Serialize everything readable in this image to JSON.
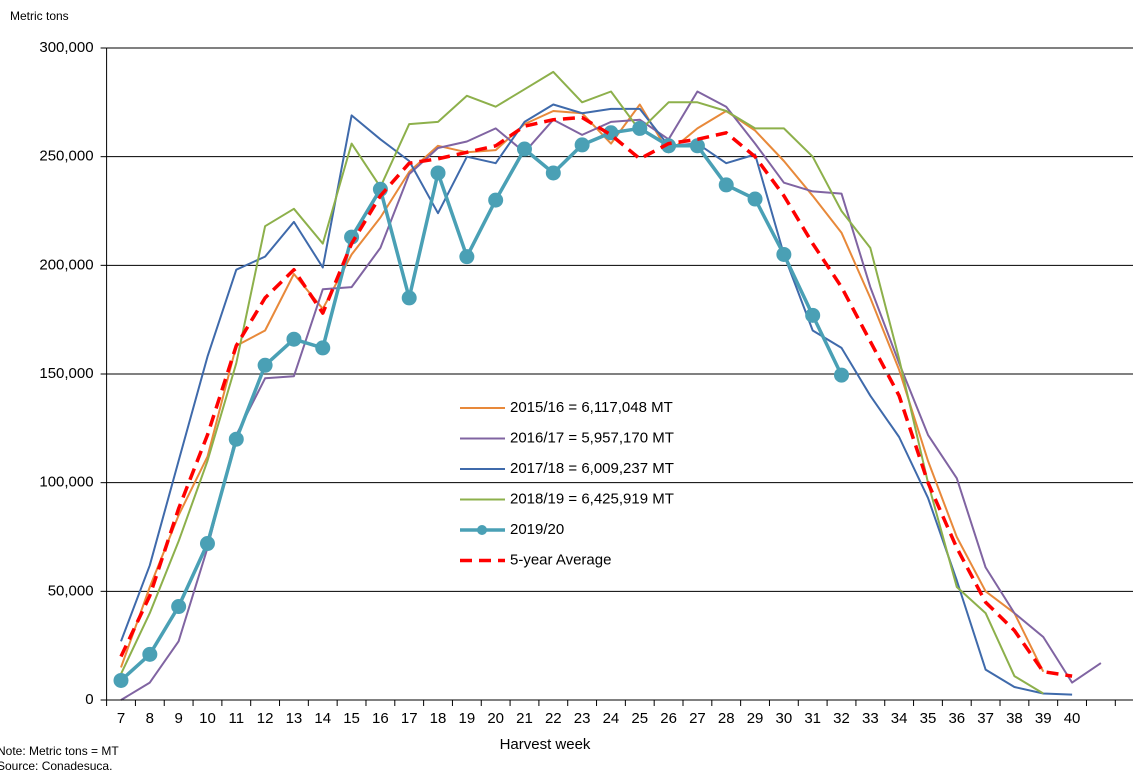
{
  "chart_data": {
    "type": "line",
    "y_unit_label": "Metric tons",
    "x_label": "Harvest  week",
    "notes": [
      "Note: Metric tons = MT",
      "Source: Conadesuca."
    ],
    "categories": [
      "7",
      "8",
      "9",
      "10",
      "11",
      "12",
      "13",
      "14",
      "15",
      "16",
      "17",
      "18",
      "19",
      "20",
      "21",
      "22",
      "23",
      "24",
      "25",
      "26",
      "27",
      "28",
      "29",
      "30",
      "31",
      "32",
      "33",
      "34",
      "35",
      "36",
      "37",
      "38",
      "39",
      "40",
      null
    ],
    "ylim": [
      0,
      300000
    ],
    "yticks": [
      0,
      {
        "value": 50000,
        "label": "50,000"
      },
      {
        "value": 100000,
        "label": "100,000"
      },
      {
        "value": 150000,
        "label": "150,000"
      },
      {
        "value": 200000,
        "label": "200,000"
      },
      {
        "value": 250000,
        "label": "250,000"
      },
      {
        "value": 300000,
        "label": "300,000"
      }
    ],
    "grid": true,
    "legend": "center",
    "series": [
      {
        "name": "2015/16 = 6,117,048 MT",
        "color": "#e8893a",
        "style": "solid",
        "values": [
          15000,
          52000,
          85000,
          112000,
          163000,
          170000,
          196000,
          180000,
          205000,
          222000,
          243000,
          255000,
          252000,
          253000,
          265000,
          271000,
          270000,
          256000,
          274000,
          252000,
          263000,
          271000,
          262000,
          248000,
          232000,
          215000,
          185000,
          152000,
          110000,
          75000,
          50000,
          40000,
          13000,
          null,
          null
        ]
      },
      {
        "name": "2016/17 = 5,957,170 MT",
        "color": "#8064a2",
        "style": "solid",
        "values": [
          0,
          8000,
          27000,
          70000,
          122000,
          148000,
          149000,
          189000,
          190000,
          208000,
          242000,
          254000,
          257000,
          263000,
          252000,
          267000,
          260000,
          266000,
          267000,
          258000,
          280000,
          273000,
          256000,
          238000,
          234000,
          233000,
          190000,
          155000,
          122000,
          102000,
          61000,
          40000,
          29000,
          8000,
          17000
        ]
      },
      {
        "name": "2017/18 = 6,009,237 MT",
        "color": "#3f6aab",
        "style": "solid",
        "values": [
          27000,
          62000,
          110000,
          158000,
          198000,
          204000,
          220000,
          199000,
          269000,
          258000,
          248000,
          224000,
          250000,
          247000,
          266000,
          274000,
          270000,
          272000,
          272000,
          255000,
          256000,
          247000,
          251000,
          205000,
          170000,
          162000,
          140000,
          121000,
          93000,
          55000,
          14000,
          6000,
          3000,
          2500,
          null
        ]
      },
      {
        "name": "2018/19 = 6,425,919 MT",
        "color": "#8db04b",
        "style": "solid",
        "values": [
          12000,
          40000,
          73000,
          110000,
          155000,
          218000,
          226000,
          210000,
          256000,
          236000,
          265000,
          266000,
          278000,
          273000,
          281000,
          289000,
          275000,
          280000,
          262000,
          275000,
          275000,
          271000,
          263000,
          263000,
          250000,
          225000,
          208000,
          157000,
          100000,
          52000,
          40000,
          11000,
          3000,
          null,
          null
        ]
      },
      {
        "name": "2019/20",
        "color": "#4aa0b5",
        "style": "marker",
        "values": [
          9000,
          21000,
          43000,
          72000,
          120000,
          154000,
          166000,
          162000,
          213000,
          235000,
          185000,
          242500,
          204000,
          230000,
          253500,
          242500,
          255400,
          261000,
          263000,
          255000,
          255000,
          237000,
          230500,
          205000,
          177000,
          149500,
          null,
          null,
          null,
          null,
          null,
          null,
          null,
          null,
          null
        ]
      },
      {
        "name": "5-year Average",
        "color": "#ff0000",
        "style": "dashed",
        "values": [
          20000,
          48000,
          88000,
          122000,
          163000,
          185000,
          198000,
          178000,
          210000,
          232000,
          247000,
          249000,
          252000,
          255000,
          264000,
          267000,
          268000,
          260000,
          249000,
          256000,
          258000,
          261000,
          250000,
          232000,
          210000,
          190000,
          165000,
          140000,
          100000,
          70000,
          45000,
          32000,
          13000,
          11000,
          null
        ]
      }
    ]
  }
}
